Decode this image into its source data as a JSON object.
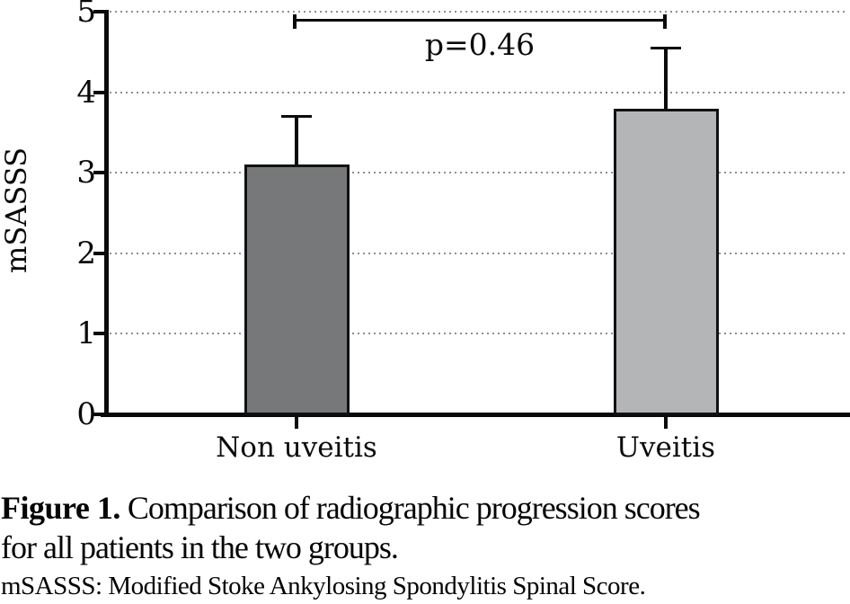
{
  "chart_data": {
    "type": "bar",
    "title": "",
    "ylabel": "mSASSS",
    "xlabel": "",
    "categories": [
      "Non uveitis",
      "Uveitis"
    ],
    "values": [
      3.1,
      3.8
    ],
    "errors_plus": [
      0.6,
      0.75
    ],
    "ylim": [
      0,
      5
    ],
    "yticks": [
      0,
      1,
      2,
      3,
      4,
      5
    ],
    "grid": "horizontal-dotted",
    "legend_position": "none",
    "bar_colors": [
      "#76787a",
      "#b3b5b7"
    ],
    "bar_border_color": "#111111",
    "axis_color": "#0a0a0a",
    "annotation": {
      "label": "p=0.46",
      "between": [
        "Non uveitis",
        "Uveitis"
      ]
    }
  },
  "caption": {
    "figure_label": "Figure 1.",
    "line1": "Comparison of radiographic progression scores",
    "line2": "for all patients in the two groups.",
    "footnote": "mSASSS: Modified Stoke Ankylosing Spondylitis Spinal Score."
  }
}
